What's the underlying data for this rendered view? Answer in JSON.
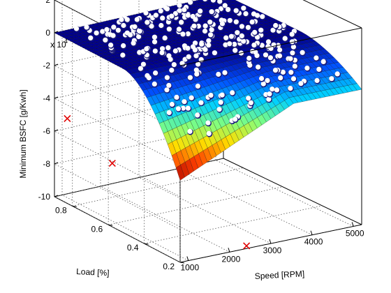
{
  "chart_data": {
    "type": "surface3d",
    "title": "",
    "xlabel": "Speed [RPM]",
    "ylabel": "Load [%]",
    "zlabel": "Minimum BSFC [g/Kwh]",
    "z_multiplier_label": "x 10",
    "z_multiplier_exp": "4",
    "xlim": [
      800,
      5200
    ],
    "ylim": [
      0.2,
      0.9
    ],
    "zlim": [
      -10,
      2
    ],
    "x_ticks": [
      1000,
      2000,
      3000,
      4000,
      5000
    ],
    "y_ticks": [
      0.2,
      0.4,
      0.6,
      0.8
    ],
    "z_ticks": [
      -10,
      -8,
      -6,
      -4,
      -2,
      0,
      2
    ],
    "x_tick_labels": [
      "1000",
      "2000",
      "3000",
      "4000",
      "5000"
    ],
    "y_tick_labels": [
      "0.2",
      "0.4",
      "0.6",
      "0.8"
    ],
    "z_tick_labels": [
      "-10",
      "-8",
      "-6",
      "-4",
      "-2",
      "0",
      "2"
    ],
    "grid": true,
    "surface": {
      "description": "near-flat surface around z=0, dipping toward low speed / low load",
      "z_center": 0,
      "z_min": -5,
      "colormap": [
        "#000090",
        "#0050ff",
        "#00d0ff",
        "#80ff80",
        "#ffe000",
        "#ff4000",
        "#a00000"
      ]
    },
    "series": [
      {
        "name": "",
        "marker": "x",
        "color": "#e00000",
        "points": [
          {
            "x": 900,
            "y": 0.85,
            "z": -5.0
          },
          {
            "x": 900,
            "y": 0.6,
            "z": -6.3
          },
          {
            "x": 2500,
            "y": 0.22,
            "z": -10.0
          }
        ]
      },
      {
        "name": "",
        "marker": "o",
        "color": "#ffffff",
        "count": 300
      }
    ]
  }
}
